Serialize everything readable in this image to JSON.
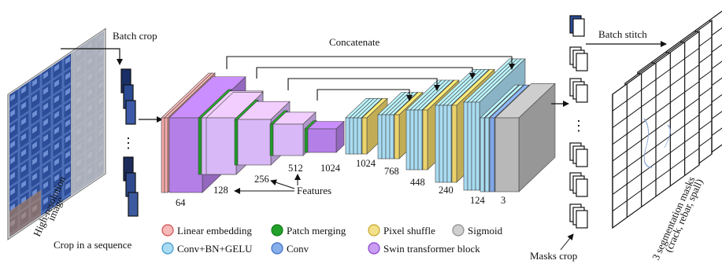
{
  "labels": {
    "batch_crop": "Batch crop",
    "concatenate": "Concatenate",
    "batch_stitch": "Batch stitch",
    "high_res_line1": "High-resolution",
    "high_res_line2": "image",
    "crop_sequence": "Crop in a sequence",
    "features": "Features",
    "masks_crop": "Masks crop",
    "seg_line1": "3 segmentation masks",
    "seg_line2": "(crack, rebar, spall)",
    "ellipsis": "⋮"
  },
  "channels": {
    "c64": "64",
    "c128": "128",
    "c256": "256",
    "c512": "512",
    "c1024a": "1024",
    "c1024b": "1024",
    "c768": "768",
    "c448": "448",
    "c240": "240",
    "c124": "124",
    "c3": "3"
  },
  "legend": [
    {
      "label": "Linear embedding",
      "color": "#f7b8b8",
      "stroke": "#d04f4f"
    },
    {
      "label": "Patch merging",
      "color": "#22a12a",
      "stroke": "#137a1a"
    },
    {
      "label": "Pixel shuffle",
      "color": "#f3e08a",
      "stroke": "#c8a62a"
    },
    {
      "label": "Sigmoid",
      "color": "#cfcfcf",
      "stroke": "#8d8d8d"
    },
    {
      "label": "Conv+BN+GELU",
      "color": "#a8dcf2",
      "stroke": "#3e97c9"
    },
    {
      "label": "Conv",
      "color": "#86aee8",
      "stroke": "#3e6fc9"
    },
    {
      "label": "Swin transformer block",
      "color": "#c99ef2",
      "stroke": "#8a3fd0"
    }
  ],
  "colors": {
    "swin": "#b57fe8",
    "swin_light": "#d8b8f7",
    "green": "#1f9b26",
    "pink": "#f5a9a9",
    "cyan": "#a8dcf2",
    "yellow": "#ecd36a",
    "gray": "#b8b8b8",
    "blue": "#7fa6e6"
  }
}
